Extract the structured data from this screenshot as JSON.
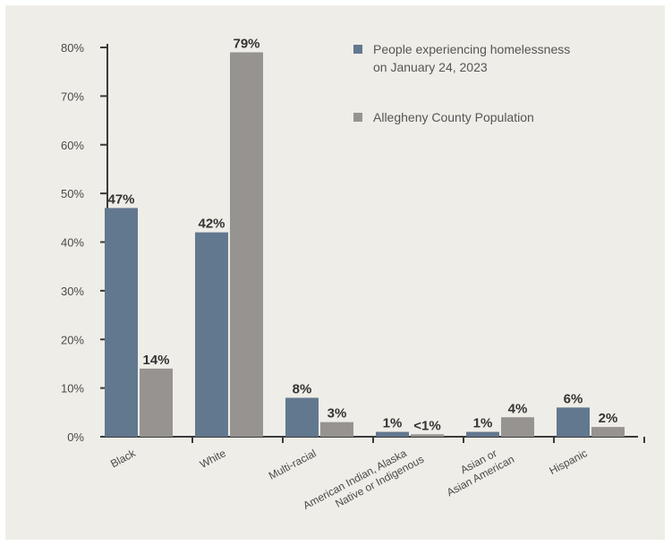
{
  "chart_data": {
    "type": "bar",
    "categories": [
      [
        "Black"
      ],
      [
        "White"
      ],
      [
        "Multi-racial"
      ],
      [
        "American Indian, Alaska",
        "Native or Indigenous"
      ],
      [
        "Asian or",
        "Asian American"
      ],
      [
        "Hispanic"
      ]
    ],
    "series": [
      {
        "name": "People experiencing homelessness on January 24, 2023",
        "legend_lines": [
          "People experiencing homelessness",
          "on January 24, 2023"
        ],
        "color": "#62788f",
        "values": [
          47,
          42,
          8,
          1,
          1,
          6
        ],
        "labels": [
          "47%",
          "42%",
          "8%",
          "1%",
          "1%",
          "6%"
        ]
      },
      {
        "name": "Allegheny County Population",
        "legend_lines": [
          "Allegheny County Population"
        ],
        "color": "#969391",
        "values": [
          14,
          79,
          3,
          0.5,
          4,
          2
        ],
        "labels": [
          "14%",
          "79%",
          "3%",
          "<1%",
          "4%",
          "2%"
        ]
      }
    ],
    "yticks": [
      "0%",
      "10%",
      "20%",
      "30%",
      "40%",
      "50%",
      "60%",
      "70%",
      "80%"
    ],
    "ylim": [
      0,
      80
    ],
    "legend_position": "top-right"
  }
}
